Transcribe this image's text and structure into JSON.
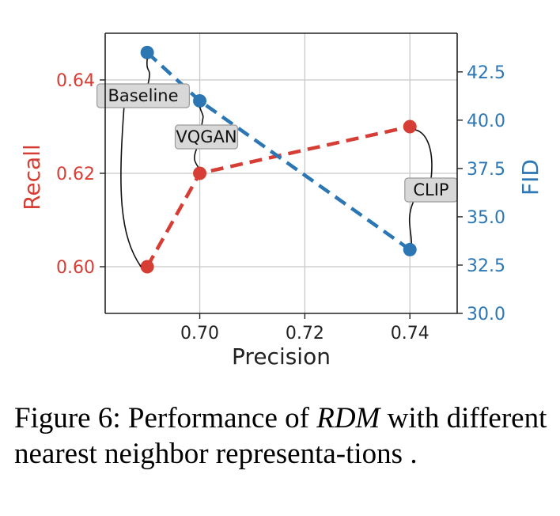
{
  "chart_data": {
    "type": "line",
    "xlabel": "Precision",
    "ylabel_left": "Recall",
    "ylabel_right": "FID",
    "xlim": [
      0.682,
      0.749
    ],
    "ylim_left": [
      0.59,
      0.65
    ],
    "ylim_right": [
      30.0,
      44.5
    ],
    "x_ticks": [
      0.7,
      0.72,
      0.74
    ],
    "x_tick_labels": [
      "0.70",
      "0.72",
      "0.74"
    ],
    "y_left_ticks": [
      0.6,
      0.62,
      0.64
    ],
    "y_left_tick_labels": [
      "0.60",
      "0.62",
      "0.64"
    ],
    "y_right_ticks": [
      30.0,
      32.5,
      35.0,
      37.5,
      40.0,
      42.5
    ],
    "y_right_tick_labels": [
      "30.0",
      "32.5",
      "35.0",
      "37.5",
      "40.0",
      "42.5"
    ],
    "grid": true,
    "series": [
      {
        "name": "Recall",
        "axis": "left",
        "color": "#d63d34",
        "points": [
          {
            "x": 0.69,
            "y": 0.6
          },
          {
            "x": 0.7,
            "y": 0.62
          },
          {
            "x": 0.74,
            "y": 0.63
          }
        ]
      },
      {
        "name": "FID",
        "axis": "right",
        "color": "#2c77b3",
        "points": [
          {
            "x": 0.69,
            "y": 43.5
          },
          {
            "x": 0.7,
            "y": 41.0
          },
          {
            "x": 0.74,
            "y": 33.3
          }
        ]
      }
    ],
    "annotations": [
      {
        "text": "Baseline"
      },
      {
        "text": "VQGAN"
      },
      {
        "text": "CLIP"
      }
    ]
  },
  "colors": {
    "recall": "#d63d34",
    "fid": "#2c77b3",
    "grid": "#c8c8c8",
    "axis": "#222222"
  },
  "caption": {
    "prefix": "Figure 6:  Performance of ",
    "emphasis": "RDM",
    "suffix": " with different nearest neighbor representa-tions ."
  }
}
